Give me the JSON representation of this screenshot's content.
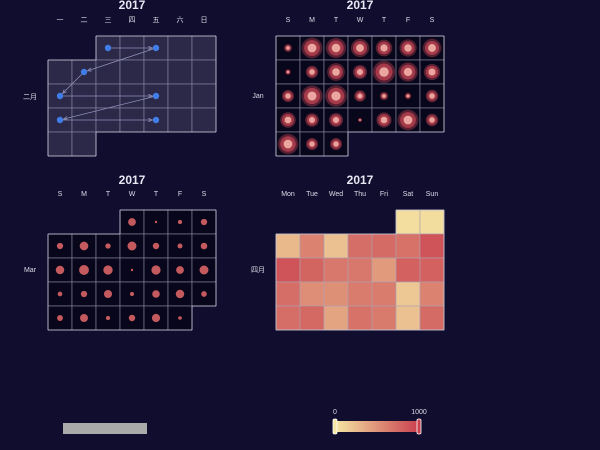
{
  "colors": {
    "background": "#110d2e",
    "scatter_blue": "#3f7ee8",
    "ripple_red": "#e5505e",
    "scatter_red": "#c55a5e",
    "heat_low": "#f5e6a3",
    "heat_high": "#c9404f",
    "brush_bar": "#aaaaaa"
  },
  "chart_data": [
    {
      "type": "scatter",
      "subtype": "calendar-graph",
      "title": "2017",
      "year": 2017,
      "month": 2,
      "month_label": "二月",
      "day_labels": [
        "一",
        "二",
        "三",
        "四",
        "五",
        "六",
        "日"
      ],
      "first_day": "monday",
      "marked_days": [
        1,
        3,
        7,
        13,
        17,
        20,
        24
      ],
      "links": [
        [
          1,
          3
        ],
        [
          3,
          7
        ],
        [
          7,
          13
        ],
        [
          13,
          17
        ],
        [
          17,
          20
        ],
        [
          20,
          24
        ]
      ]
    },
    {
      "type": "scatter",
      "subtype": "calendar-effect-scatter",
      "title": "2017",
      "year": 2017,
      "month": 1,
      "month_label": "Jan",
      "day_labels": [
        "S",
        "M",
        "T",
        "W",
        "T",
        "F",
        "S"
      ],
      "first_day": "sunday",
      "values": [
        120,
        800,
        760,
        620,
        520,
        560,
        640,
        60,
        300,
        590,
        380,
        940,
        700,
        500,
        280,
        840,
        880,
        260,
        130,
        80,
        300,
        460,
        360,
        380,
        30,
        440,
        800,
        300,
        780,
        280,
        280
      ]
    },
    {
      "type": "scatter",
      "subtype": "calendar-scatter",
      "title": "2017",
      "year": 2017,
      "month": 3,
      "month_label": "Mar",
      "day_labels": [
        "S",
        "M",
        "T",
        "W",
        "T",
        "F",
        "S"
      ],
      "first_day": "sunday",
      "values": [
        420,
        40,
        130,
        280,
        270,
        520,
        200,
        560,
        290,
        170,
        300,
        500,
        680,
        600,
        40,
        590,
        420,
        560,
        150,
        280,
        450,
        120,
        400,
        500,
        220,
        240,
        440,
        130,
        290,
        460,
        90
      ]
    },
    {
      "type": "heatmap",
      "subtype": "calendar-heatmap",
      "title": "2017",
      "year": 2017,
      "month": 4,
      "month_label": "四月",
      "day_labels": [
        "Mon",
        "Tue",
        "Wed",
        "Thu",
        "Fri",
        "Sat",
        "Sun"
      ],
      "first_day": "monday",
      "values": [
        50,
        60,
        280,
        600,
        220,
        720,
        740,
        700,
        880,
        880,
        780,
        660,
        660,
        460,
        800,
        800,
        720,
        530,
        520,
        640,
        640,
        180,
        600,
        720,
        760,
        400,
        700,
        650,
        220,
        740
      ]
    }
  ],
  "visual_map": {
    "min_label": "0",
    "max_label": "1000",
    "min": 0,
    "max": 1000
  }
}
